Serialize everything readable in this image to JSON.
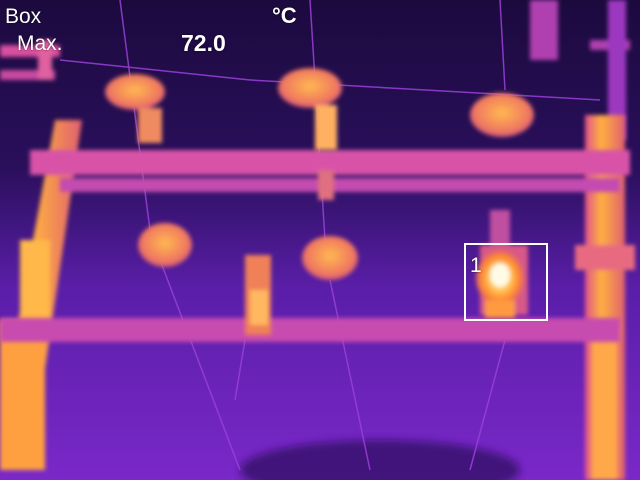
{
  "overlay": {
    "box_label": "Box",
    "unit": "°C",
    "max_label": "Max.",
    "max_value": "72.0",
    "measure_box_number": "1"
  },
  "palette": {
    "background": "#2a0f5c",
    "cold": "#7a28c8",
    "warm": "#e0508c",
    "hot": "#ff9a30",
    "hottest": "#fff6c0"
  }
}
